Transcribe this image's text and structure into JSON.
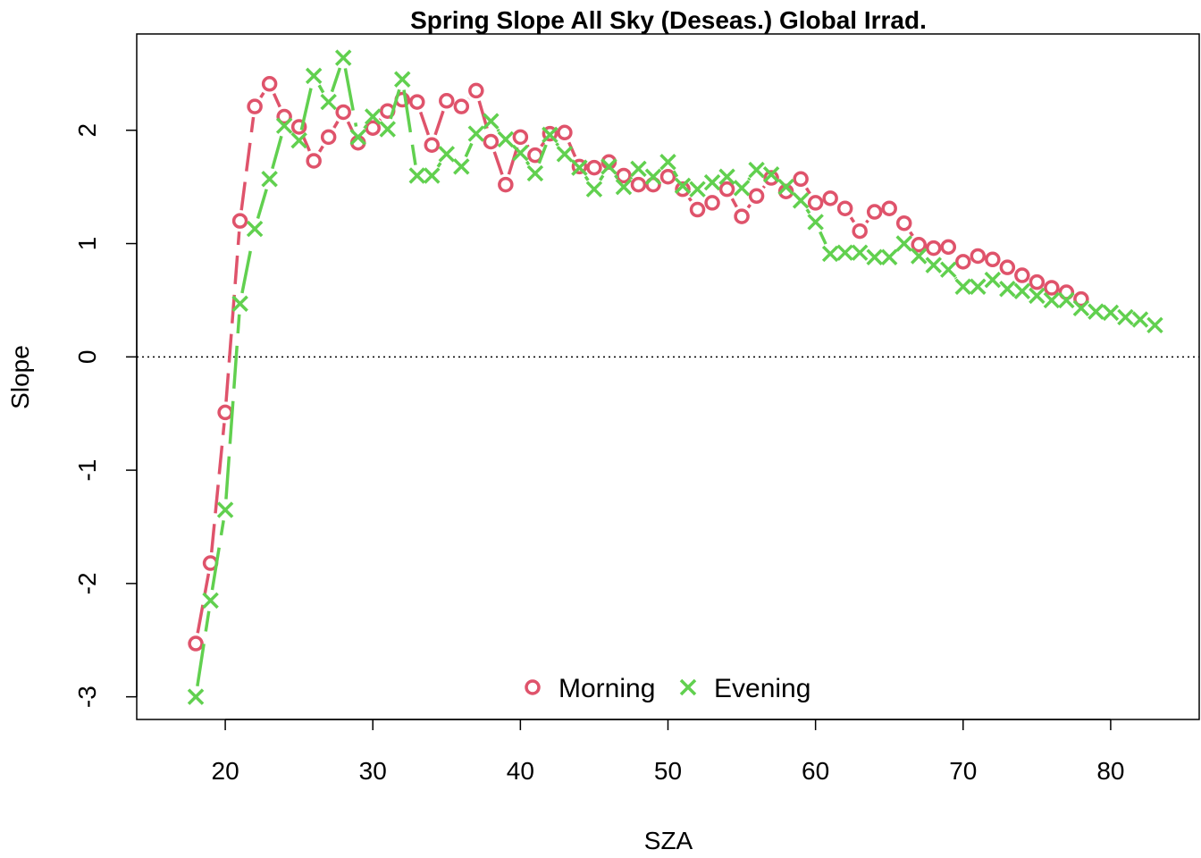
{
  "chart_data": {
    "type": "line",
    "title": "Spring Slope All Sky (Deseas.) Global Irrad.",
    "xlabel": "SZA",
    "ylabel": "Slope",
    "xlim": [
      14,
      86
    ],
    "ylim": [
      -3.2,
      2.85
    ],
    "x_ticks": [
      20,
      30,
      40,
      50,
      60,
      70,
      80
    ],
    "y_ticks": [
      -3,
      -2,
      -1,
      0,
      1,
      2
    ],
    "reference_line": {
      "y": 0,
      "style": "dotted"
    },
    "legend": {
      "position": "bottom-center"
    },
    "grid": false,
    "series": [
      {
        "name": "Morning",
        "color": "#DF536B",
        "marker": "circle",
        "line": "dashed",
        "x": [
          18,
          19,
          20,
          21,
          22,
          23,
          24,
          25,
          26,
          27,
          28,
          29,
          30,
          31,
          32,
          33,
          34,
          35,
          36,
          37,
          38,
          39,
          40,
          41,
          42,
          43,
          44,
          45,
          46,
          47,
          48,
          49,
          50,
          51,
          52,
          53,
          54,
          55,
          56,
          57,
          58,
          59,
          60,
          61,
          62,
          63,
          64,
          65,
          66,
          67,
          68,
          69,
          70,
          71,
          72,
          73,
          74,
          75,
          76,
          77,
          78
        ],
        "y": [
          -2.53,
          -1.82,
          -0.49,
          1.2,
          2.21,
          2.41,
          2.12,
          2.03,
          1.73,
          1.94,
          2.16,
          1.89,
          2.02,
          2.17,
          2.27,
          2.25,
          1.87,
          2.26,
          2.21,
          2.35,
          1.9,
          1.52,
          1.94,
          1.78,
          1.97,
          1.98,
          1.68,
          1.67,
          1.72,
          1.6,
          1.52,
          1.52,
          1.59,
          1.48,
          1.3,
          1.36,
          1.48,
          1.24,
          1.42,
          1.58,
          1.46,
          1.57,
          1.36,
          1.4,
          1.31,
          1.11,
          1.28,
          1.31,
          1.18,
          0.99,
          0.96,
          0.97,
          0.84,
          0.89,
          0.86,
          0.79,
          0.72,
          0.66,
          0.61,
          0.57,
          0.51
        ]
      },
      {
        "name": "Evening",
        "color": "#61D04F",
        "marker": "x",
        "line": "longdash",
        "x": [
          18,
          19,
          20,
          21,
          22,
          23,
          24,
          25,
          26,
          27,
          28,
          29,
          30,
          31,
          32,
          33,
          34,
          35,
          36,
          37,
          38,
          39,
          40,
          41,
          42,
          43,
          44,
          45,
          46,
          47,
          48,
          49,
          50,
          51,
          52,
          53,
          54,
          55,
          56,
          57,
          58,
          59,
          60,
          61,
          62,
          63,
          64,
          65,
          66,
          67,
          68,
          69,
          70,
          71,
          72,
          73,
          74,
          75,
          76,
          77,
          78,
          79,
          80,
          81,
          82,
          83
        ],
        "y": [
          -3.0,
          -2.15,
          -1.35,
          0.47,
          1.13,
          1.57,
          2.04,
          1.91,
          2.48,
          2.25,
          2.64,
          1.94,
          2.12,
          2.01,
          2.45,
          1.6,
          1.6,
          1.79,
          1.68,
          1.97,
          2.08,
          1.92,
          1.8,
          1.62,
          1.96,
          1.79,
          1.67,
          1.48,
          1.68,
          1.5,
          1.66,
          1.59,
          1.72,
          1.51,
          1.48,
          1.54,
          1.59,
          1.49,
          1.65,
          1.61,
          1.5,
          1.38,
          1.19,
          0.91,
          0.92,
          0.92,
          0.88,
          0.88,
          1.0,
          0.89,
          0.81,
          0.77,
          0.62,
          0.62,
          0.68,
          0.6,
          0.58,
          0.54,
          0.5,
          0.5,
          0.43,
          0.4,
          0.39,
          0.35,
          0.33,
          0.28
        ]
      }
    ]
  }
}
